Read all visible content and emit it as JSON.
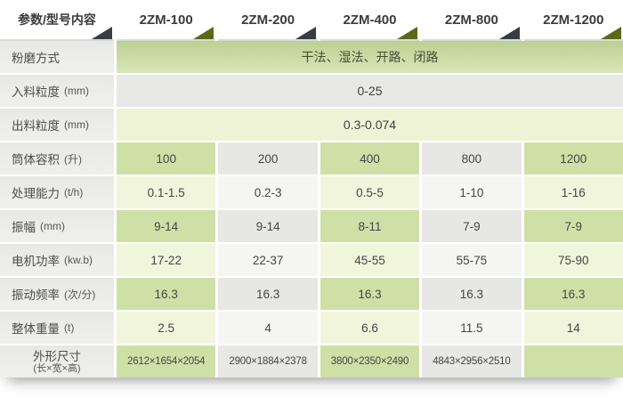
{
  "header": {
    "param_label": "参数/型号内容",
    "models": [
      "2ZM-100",
      "2ZM-200",
      "2ZM-400",
      "2ZM-800",
      "2ZM-1200"
    ]
  },
  "rows": [
    {
      "label": "粉磨方式",
      "unit": "",
      "value": "干法、湿法、开路、闭路"
    },
    {
      "label": "入料粒度",
      "unit": "(mm)",
      "value": "0-25"
    },
    {
      "label": "出料粒度",
      "unit": "(mm)",
      "value": "0.3-0.074"
    },
    {
      "label": "筒体容积",
      "unit": "(升)",
      "values": [
        "100",
        "200",
        "400",
        "800",
        "1200"
      ]
    },
    {
      "label": "处理能力",
      "unit": "(t/h)",
      "values": [
        "0.1-1.5",
        "0.2-3",
        "0.5-5",
        "1-10",
        "1-16"
      ]
    },
    {
      "label": "振幅",
      "unit": "(mm)",
      "values": [
        "9-14",
        "9-14",
        "8-11",
        "7-9",
        "7-9"
      ]
    },
    {
      "label": "电机功率",
      "unit": "(kw.b)",
      "values": [
        "17-22",
        "22-37",
        "45-55",
        "55-75",
        "75-90"
      ]
    },
    {
      "label": "振动频率",
      "unit": "(次/分)",
      "values": [
        "16.3",
        "16.3",
        "16.3",
        "16.3",
        "16.3"
      ]
    },
    {
      "label": "整体重量",
      "unit": "(t)",
      "values": [
        "2.5",
        "4",
        "6.6",
        "11.5",
        "14"
      ]
    },
    {
      "label": "外形尺寸",
      "unit": "(长×宽×高)",
      "values": [
        "2612×1654×2054",
        "2900×1884×2378",
        "3800×2350×2490",
        "4843×2956×2510",
        ""
      ]
    }
  ],
  "colors": {
    "accent_green_dark": "#cfe0a7",
    "accent_green_light": "#f0f5dc",
    "gray_dark": "#e7e7e5",
    "gray_light": "#f5f5f3",
    "triangle_dark": "#363d43",
    "triangle_green": "#5b6a18"
  }
}
